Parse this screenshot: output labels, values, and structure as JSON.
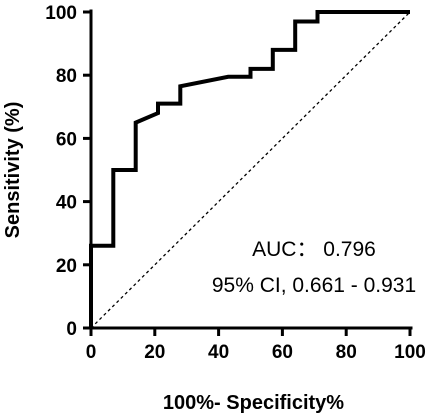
{
  "chart_data": {
    "type": "line",
    "xlabel": "100%- Specificity%",
    "ylabel": "Sensitivity (%)",
    "xlim": [
      0,
      100
    ],
    "ylim": [
      0,
      100
    ],
    "xticks": [
      0,
      20,
      40,
      60,
      80,
      100
    ],
    "yticks": [
      0,
      20,
      40,
      60,
      80,
      100
    ],
    "grid": false,
    "series": [
      {
        "x": [
          0,
          0,
          7,
          7,
          14,
          14,
          21,
          21,
          28,
          28,
          43,
          50,
          50,
          57,
          57,
          64,
          64,
          71,
          71,
          100
        ],
        "y": [
          0,
          26,
          26,
          50,
          50,
          65,
          68,
          71,
          71,
          76.5,
          79.5,
          79.5,
          82,
          82,
          88,
          88,
          97,
          97,
          100,
          100
        ],
        "style": "solid"
      },
      {
        "x": [
          0,
          100
        ],
        "y": [
          0,
          100
        ],
        "style": "dotted"
      }
    ],
    "annotations": [
      "AUC：  0.796",
      "95% CI, 0.661 - 0.931"
    ]
  }
}
